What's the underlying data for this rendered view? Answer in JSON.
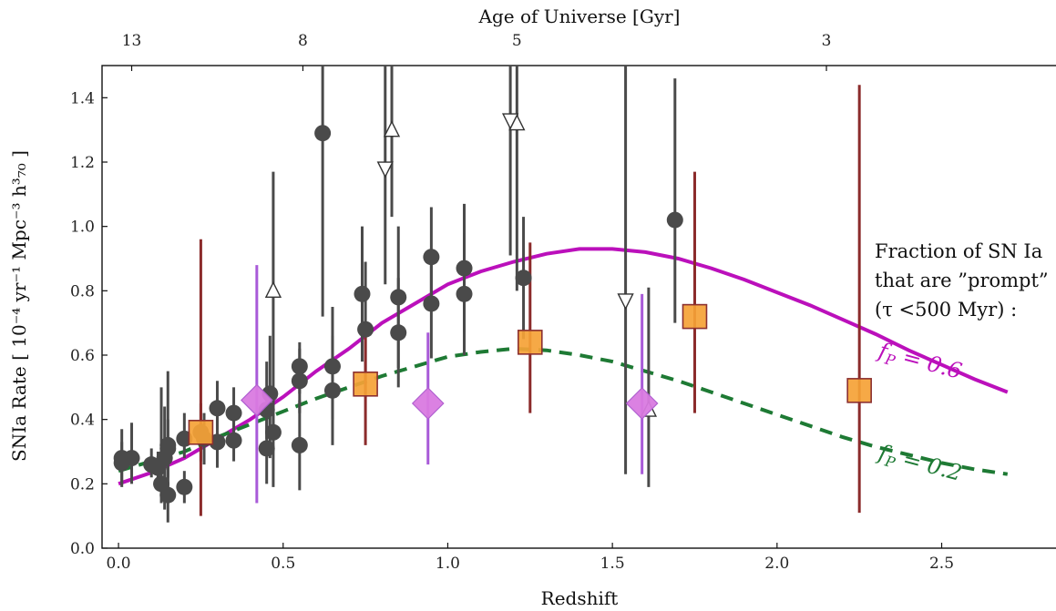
{
  "chart_data": {
    "type": "scatter",
    "xlabel": "Redshift",
    "ylabel": "SNIa Rate [ 10⁻⁴ yr⁻¹ Mpc⁻³ h³₇₀ ]",
    "top_axis_label": "Age of Universe [Gyr]",
    "xlim": [
      -0.05,
      2.85
    ],
    "ylim": [
      0.0,
      1.5
    ],
    "x_ticks": [
      0.0,
      0.5,
      1.0,
      1.5,
      2.0,
      2.5
    ],
    "x_tick_labels": [
      "0.0",
      "0.5",
      "1.0",
      "1.5",
      "2.0",
      "2.5"
    ],
    "y_ticks": [
      0.0,
      0.2,
      0.4,
      0.6,
      0.8,
      1.0,
      1.2,
      1.4
    ],
    "y_tick_labels": [
      "0.0",
      "0.2",
      "0.4",
      "0.6",
      "0.8",
      "1.0",
      "1.2",
      "1.4"
    ],
    "top_ticks": [
      {
        "age": "13",
        "z": 0.04
      },
      {
        "age": "8",
        "z": 0.56
      },
      {
        "age": "5",
        "z": 1.21
      },
      {
        "age": "3",
        "z": 2.15
      }
    ],
    "grid": false,
    "annotation": [
      "Fraction of SN Ia",
      "that are ”prompt”",
      "(τ <500 Myr) :"
    ],
    "curves": [
      {
        "label_base": "f",
        "label_sub": "P",
        "label_value": " = 0.6",
        "color": "#bb10bb",
        "dash": false,
        "points": [
          [
            0.0,
            0.2
          ],
          [
            0.1,
            0.235
          ],
          [
            0.2,
            0.28
          ],
          [
            0.3,
            0.34
          ],
          [
            0.4,
            0.4
          ],
          [
            0.5,
            0.47
          ],
          [
            0.6,
            0.55
          ],
          [
            0.7,
            0.62
          ],
          [
            0.8,
            0.7
          ],
          [
            0.9,
            0.76
          ],
          [
            1.0,
            0.82
          ],
          [
            1.1,
            0.86
          ],
          [
            1.2,
            0.89
          ],
          [
            1.3,
            0.915
          ],
          [
            1.4,
            0.93
          ],
          [
            1.5,
            0.93
          ],
          [
            1.6,
            0.92
          ],
          [
            1.7,
            0.9
          ],
          [
            1.8,
            0.87
          ],
          [
            1.9,
            0.835
          ],
          [
            2.0,
            0.795
          ],
          [
            2.1,
            0.755
          ],
          [
            2.2,
            0.71
          ],
          [
            2.3,
            0.665
          ],
          [
            2.4,
            0.615
          ],
          [
            2.5,
            0.57
          ],
          [
            2.6,
            0.525
          ],
          [
            2.7,
            0.485
          ]
        ]
      },
      {
        "label_base": "f",
        "label_sub": "P",
        "label_value": " = 0.2",
        "color": "#1e7a34",
        "dash": true,
        "points": [
          [
            0.0,
            0.24
          ],
          [
            0.1,
            0.27
          ],
          [
            0.2,
            0.3
          ],
          [
            0.3,
            0.345
          ],
          [
            0.4,
            0.385
          ],
          [
            0.5,
            0.425
          ],
          [
            0.6,
            0.465
          ],
          [
            0.7,
            0.5
          ],
          [
            0.8,
            0.535
          ],
          [
            0.9,
            0.565
          ],
          [
            1.0,
            0.595
          ],
          [
            1.1,
            0.61
          ],
          [
            1.2,
            0.62
          ],
          [
            1.3,
            0.615
          ],
          [
            1.4,
            0.6
          ],
          [
            1.5,
            0.58
          ],
          [
            1.6,
            0.55
          ],
          [
            1.7,
            0.52
          ],
          [
            1.8,
            0.485
          ],
          [
            1.9,
            0.45
          ],
          [
            2.0,
            0.415
          ],
          [
            2.1,
            0.38
          ],
          [
            2.2,
            0.345
          ],
          [
            2.3,
            0.315
          ],
          [
            2.4,
            0.29
          ],
          [
            2.5,
            0.265
          ],
          [
            2.6,
            0.245
          ],
          [
            2.7,
            0.23
          ]
        ]
      }
    ],
    "marker_groups": [
      {
        "marker": "circle",
        "color": "#4a4a4a",
        "error_color": "#4a4a4a",
        "points": [
          {
            "x": 0.01,
            "y": 0.28,
            "lo": 0.19,
            "hi": 0.37
          },
          {
            "x": 0.01,
            "y": 0.265,
            "lo": 0.2,
            "hi": 0.33
          },
          {
            "x": 0.04,
            "y": 0.28,
            "lo": 0.2,
            "hi": 0.39
          },
          {
            "x": 0.1,
            "y": 0.26,
            "lo": 0.22,
            "hi": 0.31
          },
          {
            "x": 0.12,
            "y": 0.25,
            "lo": 0.18,
            "hi": 0.3
          },
          {
            "x": 0.13,
            "y": 0.2,
            "lo": 0.14,
            "hi": 0.5
          },
          {
            "x": 0.14,
            "y": 0.28,
            "lo": 0.12,
            "hi": 0.44
          },
          {
            "x": 0.15,
            "y": 0.31,
            "lo": 0.15,
            "hi": 0.55
          },
          {
            "x": 0.15,
            "y": 0.165,
            "lo": 0.08,
            "hi": 0.26
          },
          {
            "x": 0.15,
            "y": 0.32,
            "lo": 0.22,
            "hi": 0.4
          },
          {
            "x": 0.2,
            "y": 0.19,
            "lo": 0.14,
            "hi": 0.24
          },
          {
            "x": 0.2,
            "y": 0.34,
            "lo": 0.28,
            "hi": 0.42
          },
          {
            "x": 0.25,
            "y": 0.36,
            "lo": 0.27,
            "hi": 0.45
          },
          {
            "x": 0.26,
            "y": 0.34,
            "lo": 0.26,
            "hi": 0.42
          },
          {
            "x": 0.3,
            "y": 0.435,
            "lo": 0.37,
            "hi": 0.52
          },
          {
            "x": 0.3,
            "y": 0.33,
            "lo": 0.25,
            "hi": 0.41
          },
          {
            "x": 0.35,
            "y": 0.42,
            "lo": 0.32,
            "hi": 0.5
          },
          {
            "x": 0.35,
            "y": 0.335,
            "lo": 0.27,
            "hi": 0.41
          },
          {
            "x": 0.45,
            "y": 0.43,
            "lo": 0.34,
            "hi": 0.58
          },
          {
            "x": 0.45,
            "y": 0.31,
            "lo": 0.2,
            "hi": 0.44
          },
          {
            "x": 0.46,
            "y": 0.48,
            "lo": 0.28,
            "hi": 0.66
          },
          {
            "x": 0.47,
            "y": 0.36,
            "lo": 0.19,
            "hi": 0.49
          },
          {
            "x": 0.55,
            "y": 0.565,
            "lo": 0.48,
            "hi": 0.64
          },
          {
            "x": 0.55,
            "y": 0.52,
            "lo": 0.42,
            "hi": 0.62
          },
          {
            "x": 0.55,
            "y": 0.32,
            "lo": 0.18,
            "hi": 0.46
          },
          {
            "x": 0.62,
            "y": 1.29,
            "lo": 0.72,
            "hi": 1.5
          },
          {
            "x": 0.65,
            "y": 0.565,
            "lo": 0.4,
            "hi": 0.75
          },
          {
            "x": 0.65,
            "y": 0.49,
            "lo": 0.32,
            "hi": 0.66
          },
          {
            "x": 0.74,
            "y": 0.79,
            "lo": 0.58,
            "hi": 1.0
          },
          {
            "x": 0.75,
            "y": 0.68,
            "lo": 0.47,
            "hi": 0.89
          },
          {
            "x": 0.85,
            "y": 0.78,
            "lo": 0.56,
            "hi": 1.0
          },
          {
            "x": 0.85,
            "y": 0.67,
            "lo": 0.5,
            "hi": 0.84
          },
          {
            "x": 0.95,
            "y": 0.905,
            "lo": 0.75,
            "hi": 1.06
          },
          {
            "x": 0.95,
            "y": 0.76,
            "lo": 0.59,
            "hi": 0.93
          },
          {
            "x": 1.05,
            "y": 0.87,
            "lo": 0.67,
            "hi": 1.07
          },
          {
            "x": 1.05,
            "y": 0.79,
            "lo": 0.6,
            "hi": 0.98
          },
          {
            "x": 1.23,
            "y": 0.84,
            "lo": 0.65,
            "hi": 1.03
          },
          {
            "x": 1.69,
            "y": 1.02,
            "lo": 0.7,
            "hi": 1.46
          }
        ]
      },
      {
        "marker": "triangle-up",
        "color": "#ffffff",
        "error_color": "#4a4a4a",
        "points": [
          {
            "x": 0.47,
            "y": 0.8,
            "lo": 0.36,
            "hi": 1.17
          },
          {
            "x": 0.83,
            "y": 1.3,
            "lo": 1.03,
            "hi": 1.5
          },
          {
            "x": 1.21,
            "y": 1.32,
            "lo": 0.8,
            "hi": 1.5
          },
          {
            "x": 1.61,
            "y": 0.43,
            "lo": 0.19,
            "hi": 0.81
          }
        ]
      },
      {
        "marker": "triangle-down",
        "color": "#ffffff",
        "error_color": "#4a4a4a",
        "points": [
          {
            "x": 0.81,
            "y": 1.18,
            "lo": 0.82,
            "hi": 1.5
          },
          {
            "x": 1.19,
            "y": 1.33,
            "lo": 0.91,
            "hi": 1.5
          },
          {
            "x": 1.54,
            "y": 0.77,
            "lo": 0.23,
            "hi": 1.5
          }
        ]
      },
      {
        "marker": "diamond",
        "color": "#d97ae0",
        "error_color": "#a85ad8",
        "points": [
          {
            "x": 0.42,
            "y": 0.46,
            "lo": 0.14,
            "hi": 0.88
          },
          {
            "x": 0.94,
            "y": 0.45,
            "lo": 0.26,
            "hi": 0.67
          },
          {
            "x": 1.59,
            "y": 0.45,
            "lo": 0.23,
            "hi": 0.79
          }
        ]
      },
      {
        "marker": "square",
        "color": "#f5a236",
        "error_color": "#8b2b2b",
        "points": [
          {
            "x": 0.25,
            "y": 0.36,
            "lo": 0.1,
            "hi": 0.96
          },
          {
            "x": 0.75,
            "y": 0.51,
            "lo": 0.32,
            "hi": 0.69
          },
          {
            "x": 1.25,
            "y": 0.64,
            "lo": 0.42,
            "hi": 0.95
          },
          {
            "x": 1.75,
            "y": 0.72,
            "lo": 0.42,
            "hi": 1.17
          },
          {
            "x": 2.25,
            "y": 0.49,
            "lo": 0.11,
            "hi": 1.44
          }
        ]
      }
    ]
  }
}
